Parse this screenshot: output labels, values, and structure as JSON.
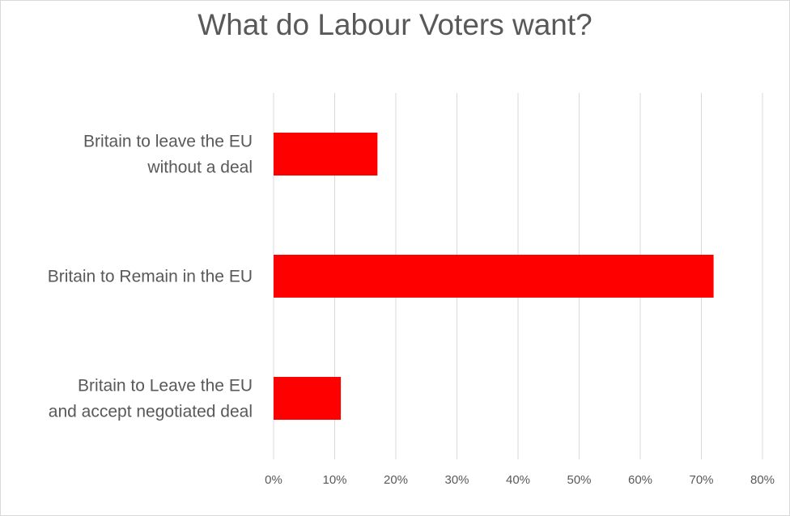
{
  "chart_data": {
    "type": "bar",
    "orientation": "horizontal",
    "title": "What do Labour Voters want?",
    "categories": [
      "Britain to leave the EU without a deal",
      "Britain to Remain in the EU",
      "Britain to Leave the EU and accept negotiated deal"
    ],
    "category_lines": [
      [
        "Britain to leave the EU",
        "without a deal"
      ],
      [
        "Britain to Remain in the EU"
      ],
      [
        "Britain to Leave the EU",
        "and accept negotiated deal"
      ]
    ],
    "values": [
      17,
      72,
      11
    ],
    "x_ticks": [
      "0%",
      "10%",
      "20%",
      "30%",
      "40%",
      "50%",
      "60%",
      "70%",
      "80%"
    ],
    "xlim": [
      0,
      80
    ],
    "unit": "%",
    "bar_color": "#ff0000",
    "grid": "vertical",
    "legend": "none"
  }
}
